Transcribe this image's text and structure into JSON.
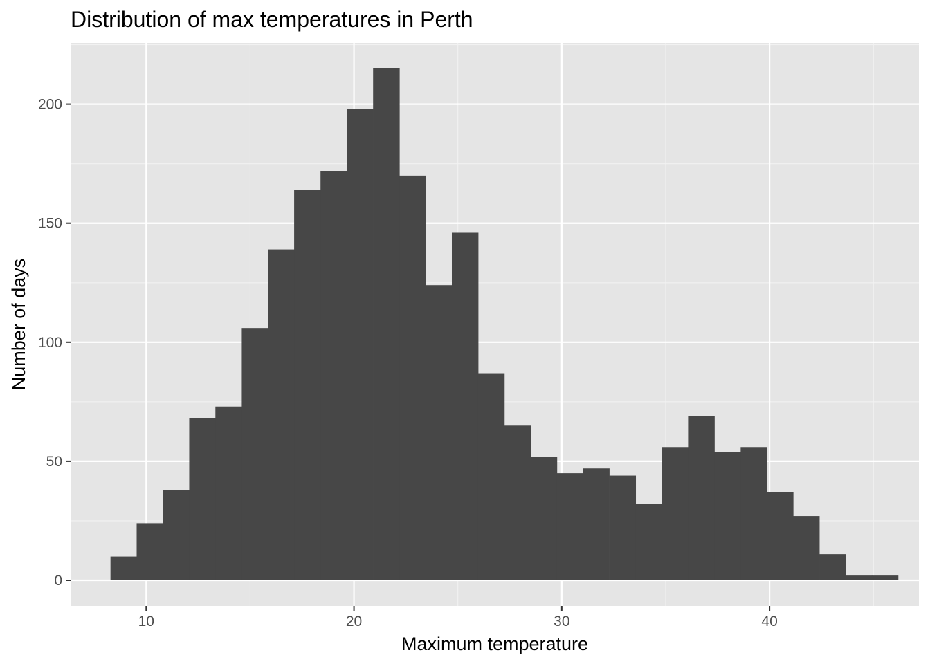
{
  "chart_data": {
    "type": "bar",
    "title": "Distribution of max temperatures in Perth",
    "xlabel": "Maximum temperature",
    "ylabel": "Number of days",
    "bin_width": 1.2629,
    "bins": [
      {
        "x_start": 8.28,
        "count": 10
      },
      {
        "x_start": 9.54,
        "count": 24
      },
      {
        "x_start": 10.81,
        "count": 38
      },
      {
        "x_start": 12.07,
        "count": 68
      },
      {
        "x_start": 13.33,
        "count": 73
      },
      {
        "x_start": 14.6,
        "count": 106
      },
      {
        "x_start": 15.86,
        "count": 139
      },
      {
        "x_start": 17.12,
        "count": 164
      },
      {
        "x_start": 18.39,
        "count": 172
      },
      {
        "x_start": 19.65,
        "count": 198
      },
      {
        "x_start": 20.92,
        "count": 215
      },
      {
        "x_start": 22.18,
        "count": 170
      },
      {
        "x_start": 23.44,
        "count": 124
      },
      {
        "x_start": 24.71,
        "count": 146
      },
      {
        "x_start": 25.97,
        "count": 87
      },
      {
        "x_start": 27.23,
        "count": 65
      },
      {
        "x_start": 28.5,
        "count": 52
      },
      {
        "x_start": 29.76,
        "count": 45
      },
      {
        "x_start": 31.02,
        "count": 47
      },
      {
        "x_start": 32.29,
        "count": 44
      },
      {
        "x_start": 33.55,
        "count": 32
      },
      {
        "x_start": 34.82,
        "count": 56
      },
      {
        "x_start": 36.08,
        "count": 69
      },
      {
        "x_start": 37.34,
        "count": 54
      },
      {
        "x_start": 38.61,
        "count": 56
      },
      {
        "x_start": 39.87,
        "count": 37
      },
      {
        "x_start": 41.13,
        "count": 27
      },
      {
        "x_start": 42.4,
        "count": 11
      },
      {
        "x_start": 43.66,
        "count": 2
      },
      {
        "x_start": 44.92,
        "count": 2
      }
    ],
    "xlim": [
      6.36,
      47.19
    ],
    "ylim": [
      -10.75,
      225.75
    ],
    "x_ticks": [
      10,
      20,
      30,
      40
    ],
    "x_tick_labels": [
      "10",
      "20",
      "30",
      "40"
    ],
    "y_ticks": [
      0,
      50,
      100,
      150,
      200
    ],
    "y_tick_labels": [
      "0",
      "50",
      "100",
      "150",
      "200"
    ],
    "grid": true,
    "colors": {
      "panel_background": "#e5e5e5",
      "grid_major": "#ffffff",
      "grid_minor": "#f2f2f2",
      "bar_fill": "#474747",
      "tick_label": "#4d4d4d",
      "tick_mark": "#333333"
    }
  }
}
